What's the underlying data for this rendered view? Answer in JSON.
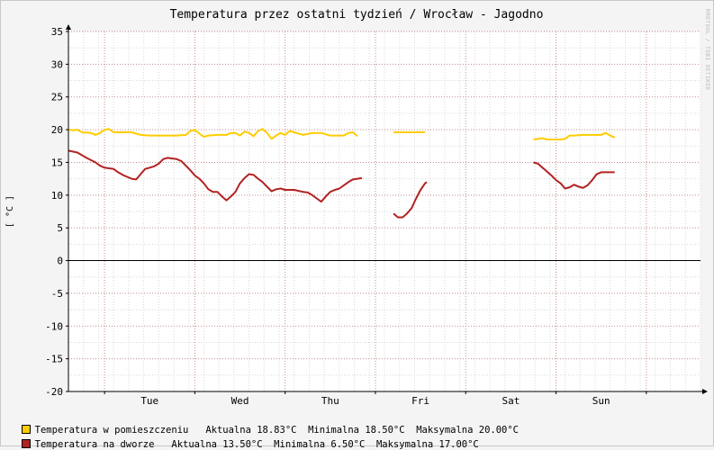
{
  "watermark": "RRDTOOL / TOBI OETIKER",
  "chart_data": {
    "type": "line",
    "title": "Temperatura przez ostatni tydzień / Wrocław - Jagodno",
    "ylabel": "[ °C ]",
    "ylim": [
      -20,
      35
    ],
    "yticks": [
      35,
      30,
      25,
      20,
      15,
      10,
      5,
      0,
      -5,
      -10,
      -15,
      -20
    ],
    "xlim": [
      0,
      7
    ],
    "day_boundaries": [
      0.4,
      1.4,
      2.4,
      3.4,
      4.4,
      5.4,
      6.4
    ],
    "xtick_labels": [
      {
        "label": "Tue",
        "x": 0.9
      },
      {
        "label": "Wed",
        "x": 1.9
      },
      {
        "label": "Thu",
        "x": 2.9
      },
      {
        "label": "Fri",
        "x": 3.9
      },
      {
        "label": "Sat",
        "x": 4.9
      },
      {
        "label": "Sun",
        "x": 5.9
      }
    ],
    "grid": true,
    "legend_position": "bottom",
    "series": [
      {
        "name": "Temperatura w pomieszczeniu",
        "color": "#ffcc00",
        "stats": "Aktualna 18.83°C  Minimalna 18.50°C  Maksymalna 20.00°C",
        "segments": [
          [
            [
              0.0,
              20.0
            ],
            [
              0.05,
              19.9
            ],
            [
              0.1,
              20.0
            ],
            [
              0.15,
              19.6
            ],
            [
              0.25,
              19.5
            ],
            [
              0.3,
              19.2
            ],
            [
              0.35,
              19.5
            ],
            [
              0.4,
              20.0
            ],
            [
              0.45,
              20.1
            ],
            [
              0.5,
              19.6
            ],
            [
              0.6,
              19.6
            ],
            [
              0.7,
              19.6
            ],
            [
              0.8,
              19.2
            ],
            [
              0.9,
              19.1
            ],
            [
              1.0,
              19.1
            ],
            [
              1.1,
              19.1
            ],
            [
              1.2,
              19.1
            ],
            [
              1.3,
              19.2
            ],
            [
              1.35,
              19.8
            ],
            [
              1.4,
              20.0
            ],
            [
              1.45,
              19.4
            ],
            [
              1.5,
              18.9
            ],
            [
              1.55,
              19.1
            ],
            [
              1.65,
              19.2
            ],
            [
              1.75,
              19.2
            ],
            [
              1.8,
              19.5
            ],
            [
              1.85,
              19.5
            ],
            [
              1.9,
              19.1
            ],
            [
              1.95,
              19.7
            ],
            [
              2.0,
              19.5
            ],
            [
              2.05,
              19.0
            ],
            [
              2.1,
              19.8
            ],
            [
              2.15,
              20.1
            ],
            [
              2.2,
              19.5
            ],
            [
              2.25,
              18.6
            ],
            [
              2.3,
              19.1
            ],
            [
              2.35,
              19.5
            ],
            [
              2.4,
              19.2
            ],
            [
              2.45,
              19.8
            ],
            [
              2.5,
              19.6
            ],
            [
              2.6,
              19.2
            ],
            [
              2.7,
              19.5
            ],
            [
              2.8,
              19.5
            ],
            [
              2.85,
              19.3
            ],
            [
              2.9,
              19.1
            ],
            [
              3.0,
              19.1
            ],
            [
              3.05,
              19.1
            ],
            [
              3.1,
              19.5
            ],
            [
              3.15,
              19.6
            ],
            [
              3.2,
              19.0
            ]
          ],
          [
            [
              3.6,
              19.6
            ],
            [
              3.8,
              19.6
            ],
            [
              3.95,
              19.6
            ]
          ],
          [
            [
              5.15,
              18.5
            ],
            [
              5.25,
              18.7
            ],
            [
              5.3,
              18.5
            ],
            [
              5.45,
              18.5
            ],
            [
              5.5,
              18.6
            ],
            [
              5.55,
              19.1
            ],
            [
              5.6,
              19.1
            ],
            [
              5.7,
              19.2
            ],
            [
              5.8,
              19.2
            ],
            [
              5.9,
              19.2
            ],
            [
              5.95,
              19.5
            ],
            [
              6.0,
              19.1
            ],
            [
              6.05,
              18.8
            ]
          ]
        ]
      },
      {
        "name": "Temperatura na dworze",
        "color": "#b22222",
        "stats": "Aktualna 13.50°C  Minimalna 6.50°C  Maksymalna 17.00°C",
        "segments": [
          [
            [
              0.0,
              16.8
            ],
            [
              0.1,
              16.5
            ],
            [
              0.2,
              15.7
            ],
            [
              0.3,
              15.0
            ],
            [
              0.35,
              14.5
            ],
            [
              0.4,
              14.2
            ],
            [
              0.5,
              14.0
            ],
            [
              0.55,
              13.5
            ],
            [
              0.6,
              13.1
            ],
            [
              0.65,
              12.8
            ],
            [
              0.7,
              12.5
            ],
            [
              0.75,
              12.4
            ],
            [
              0.8,
              13.2
            ],
            [
              0.85,
              14.0
            ],
            [
              0.9,
              14.2
            ],
            [
              0.95,
              14.4
            ],
            [
              1.0,
              14.8
            ],
            [
              1.05,
              15.5
            ],
            [
              1.1,
              15.7
            ],
            [
              1.15,
              15.6
            ],
            [
              1.2,
              15.5
            ],
            [
              1.25,
              15.2
            ],
            [
              1.3,
              14.5
            ],
            [
              1.35,
              13.8
            ],
            [
              1.4,
              13.0
            ],
            [
              1.45,
              12.5
            ],
            [
              1.5,
              11.8
            ],
            [
              1.55,
              10.9
            ],
            [
              1.6,
              10.5
            ],
            [
              1.65,
              10.5
            ],
            [
              1.7,
              9.8
            ],
            [
              1.75,
              9.2
            ],
            [
              1.8,
              9.8
            ],
            [
              1.85,
              10.5
            ],
            [
              1.9,
              11.8
            ],
            [
              1.95,
              12.6
            ],
            [
              2.0,
              13.2
            ],
            [
              2.05,
              13.1
            ],
            [
              2.1,
              12.5
            ],
            [
              2.15,
              12.0
            ],
            [
              2.2,
              11.3
            ],
            [
              2.25,
              10.6
            ],
            [
              2.3,
              10.9
            ],
            [
              2.35,
              11.0
            ],
            [
              2.4,
              10.8
            ],
            [
              2.5,
              10.8
            ],
            [
              2.6,
              10.5
            ],
            [
              2.65,
              10.4
            ],
            [
              2.7,
              10.0
            ],
            [
              2.75,
              9.5
            ],
            [
              2.8,
              9.0
            ],
            [
              2.85,
              9.8
            ],
            [
              2.9,
              10.5
            ],
            [
              2.95,
              10.8
            ],
            [
              3.0,
              11.0
            ],
            [
              3.05,
              11.5
            ],
            [
              3.1,
              12.0
            ],
            [
              3.15,
              12.4
            ],
            [
              3.25,
              12.6
            ]
          ],
          [
            [
              3.6,
              7.2
            ],
            [
              3.65,
              6.6
            ],
            [
              3.7,
              6.6
            ],
            [
              3.75,
              7.2
            ],
            [
              3.8,
              8.0
            ],
            [
              3.85,
              9.5
            ],
            [
              3.9,
              10.8
            ],
            [
              3.95,
              11.8
            ],
            [
              3.97,
              12.0
            ]
          ],
          [
            [
              5.15,
              15.0
            ],
            [
              5.2,
              14.8
            ],
            [
              5.25,
              14.2
            ],
            [
              5.3,
              13.6
            ],
            [
              5.35,
              13.0
            ],
            [
              5.4,
              12.3
            ],
            [
              5.45,
              11.8
            ],
            [
              5.5,
              11.0
            ],
            [
              5.55,
              11.2
            ],
            [
              5.6,
              11.6
            ],
            [
              5.65,
              11.3
            ],
            [
              5.7,
              11.1
            ],
            [
              5.75,
              11.5
            ],
            [
              5.8,
              12.3
            ],
            [
              5.85,
              13.2
            ],
            [
              5.9,
              13.5
            ],
            [
              5.95,
              13.5
            ],
            [
              6.05,
              13.5
            ]
          ]
        ]
      }
    ]
  }
}
